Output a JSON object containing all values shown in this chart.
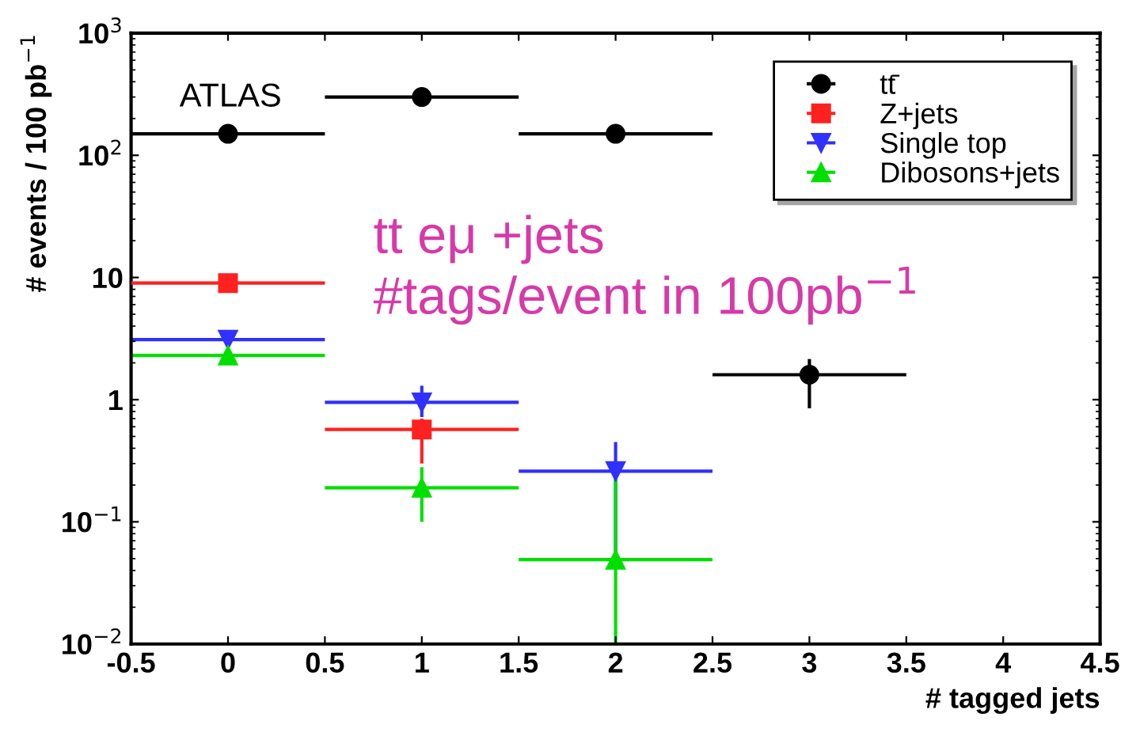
{
  "chart_data": {
    "type": "scatter",
    "xlabel": "# tagged jets",
    "ylabel": "# events / 100 pb$^{−1}$",
    "x": [
      0,
      1,
      2,
      3
    ],
    "xlim": [
      -0.5,
      4.5
    ],
    "xticks": [
      -0.5,
      0,
      0.5,
      1,
      1.5,
      2,
      2.5,
      3,
      3.5,
      4,
      4.5
    ],
    "log": true,
    "ylim": [
      0.01,
      1000
    ],
    "yticks": [
      {
        "value": 0.01,
        "label": "10$^{−2}$"
      },
      {
        "value": 0.1,
        "label": "10$^{−1}$"
      },
      1,
      10,
      {
        "value": 100,
        "label": "10$^{2}$"
      },
      {
        "value": 1000,
        "label": "10$^{3}$"
      }
    ],
    "grid": false,
    "legend": "top right",
    "series": [
      {
        "name": "tt̄",
        "color": "#000000",
        "marker": "circle",
        "values": [
          150,
          300,
          150,
          1.6
        ],
        "xerrors": [
          0.5,
          0.5,
          0.5,
          0.5
        ],
        "errors": [
          null,
          null,
          null,
          [
            0.85,
            2.15
          ]
        ]
      },
      {
        "name": "Z+jets",
        "color": "#ff2020",
        "marker": "square",
        "values": [
          9,
          0.57,
          null,
          null
        ],
        "xerrors": [
          0.5,
          0.5,
          null,
          null
        ],
        "errors": [
          null,
          [
            0.3,
            0.7
          ],
          null,
          null
        ]
      },
      {
        "name": "Single top",
        "color": "#3030ff",
        "marker": "triangle_down",
        "values": [
          3.1,
          0.95,
          0.26,
          null
        ],
        "xerrors": [
          0.5,
          0.5,
          0.5,
          null
        ],
        "errors": [
          null,
          [
            0.72,
            1.3
          ],
          [
            0.05,
            0.45
          ],
          null
        ]
      },
      {
        "name": "Dibosons+jets",
        "color": "#00e000",
        "marker": "triangle",
        "values": [
          2.3,
          0.19,
          0.049,
          null
        ],
        "xerrors": [
          0.5,
          0.5,
          0.5,
          null
        ],
        "errors": [
          null,
          [
            0.1,
            0.28
          ],
          [
            0.01,
            0.26
          ],
          null
        ]
      }
    ],
    "annotations": [
      "ATLAS",
      "tt eμ +jets",
      "#tags/event in 100pb$^{−1}$"
    ]
  }
}
